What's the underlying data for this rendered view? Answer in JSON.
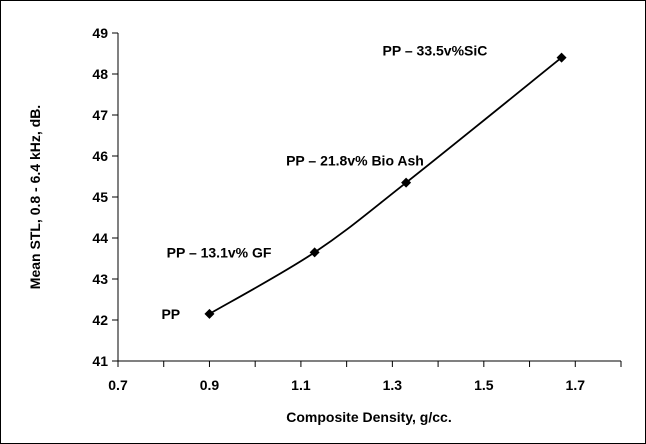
{
  "chart_data": {
    "type": "scatter",
    "title": "",
    "xlabel": "Composite Density, g/cc.",
    "ylabel": "Mean STL, 0.8 - 6.4 kHz, dB.",
    "xlim": [
      0.7,
      1.8
    ],
    "ylim": [
      41,
      49
    ],
    "xticks": [
      "0.7",
      "0.9",
      "1.1",
      "1.3",
      "1.5",
      "1.7"
    ],
    "xtick_values": [
      0.7,
      0.9,
      1.1,
      1.3,
      1.5,
      1.7
    ],
    "yticks": [
      "41",
      "42",
      "43",
      "44",
      "45",
      "46",
      "47",
      "48",
      "49"
    ],
    "ytick_values": [
      41,
      42,
      43,
      44,
      45,
      46,
      47,
      48,
      49
    ],
    "grid": false,
    "legend": "none",
    "line_style": "smooth line with diamond markers",
    "line_color": "#000000",
    "series": [
      {
        "x": [
          0.9,
          1.13,
          1.33,
          1.67
        ],
        "y": [
          42.15,
          43.65,
          45.35,
          48.4
        ]
      }
    ],
    "annotations": [
      {
        "text": "PP",
        "x": 0.9,
        "y": 42.15
      },
      {
        "text": "PP – 13.1v% GF",
        "x": 1.13,
        "y": 43.65
      },
      {
        "text": "PP – 21.8v% Bio Ash",
        "x": 1.33,
        "y": 45.35
      },
      {
        "text": "PP – 33.5v%SiC",
        "x": 1.67,
        "y": 48.4
      }
    ]
  }
}
